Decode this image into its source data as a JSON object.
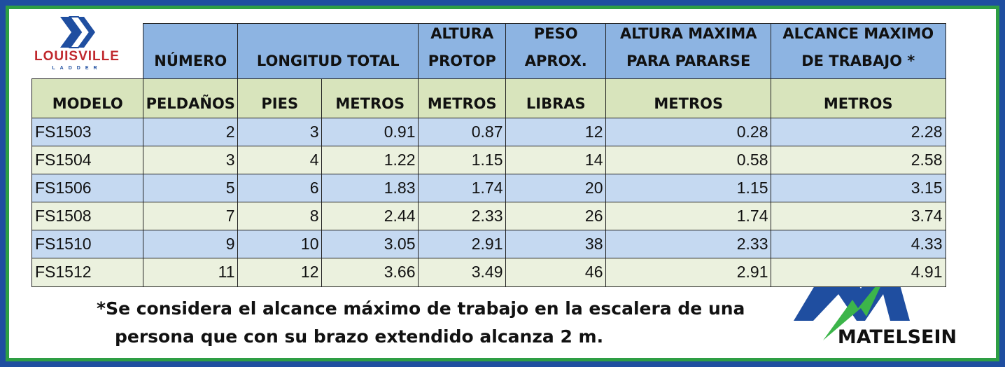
{
  "logo": {
    "name": "LOUISVILLE",
    "tagline": "LADDER"
  },
  "table": {
    "header_top": [
      [
        "NÚMERO"
      ],
      [
        "LONGITUD TOTAL"
      ],
      [
        "ALTURA",
        "PROTOP"
      ],
      [
        "PESO",
        "APROX."
      ],
      [
        "ALTURA MAXIMA",
        "PARA PARARSE"
      ],
      [
        "ALCANCE MAXIMO",
        "DE TRABAJO *"
      ]
    ],
    "header_units": [
      "MODELO",
      "PELDAÑOS",
      "PIES",
      "METROS",
      "METROS",
      "LIBRAS",
      "METROS",
      "METROS"
    ],
    "rows": [
      [
        "FS1503",
        2,
        3,
        0.91,
        0.87,
        12,
        0.28,
        2.28
      ],
      [
        "FS1504",
        3,
        4,
        1.22,
        1.15,
        14,
        0.58,
        2.58
      ],
      [
        "FS1506",
        5,
        6,
        1.83,
        1.74,
        20,
        1.15,
        3.15
      ],
      [
        "FS1508",
        7,
        8,
        2.44,
        2.33,
        26,
        1.74,
        3.74
      ],
      [
        "FS1510",
        9,
        10,
        3.05,
        2.91,
        38,
        2.33,
        4.33
      ],
      [
        "FS1512",
        11,
        12,
        3.66,
        3.49,
        46,
        2.91,
        4.91
      ]
    ]
  },
  "footnote": [
    "*Se considera el alcance máximo de trabajo en la escalera de una",
    "persona que con su brazo extendido alcanza 2 m."
  ],
  "brand": "MATELSEIN"
}
